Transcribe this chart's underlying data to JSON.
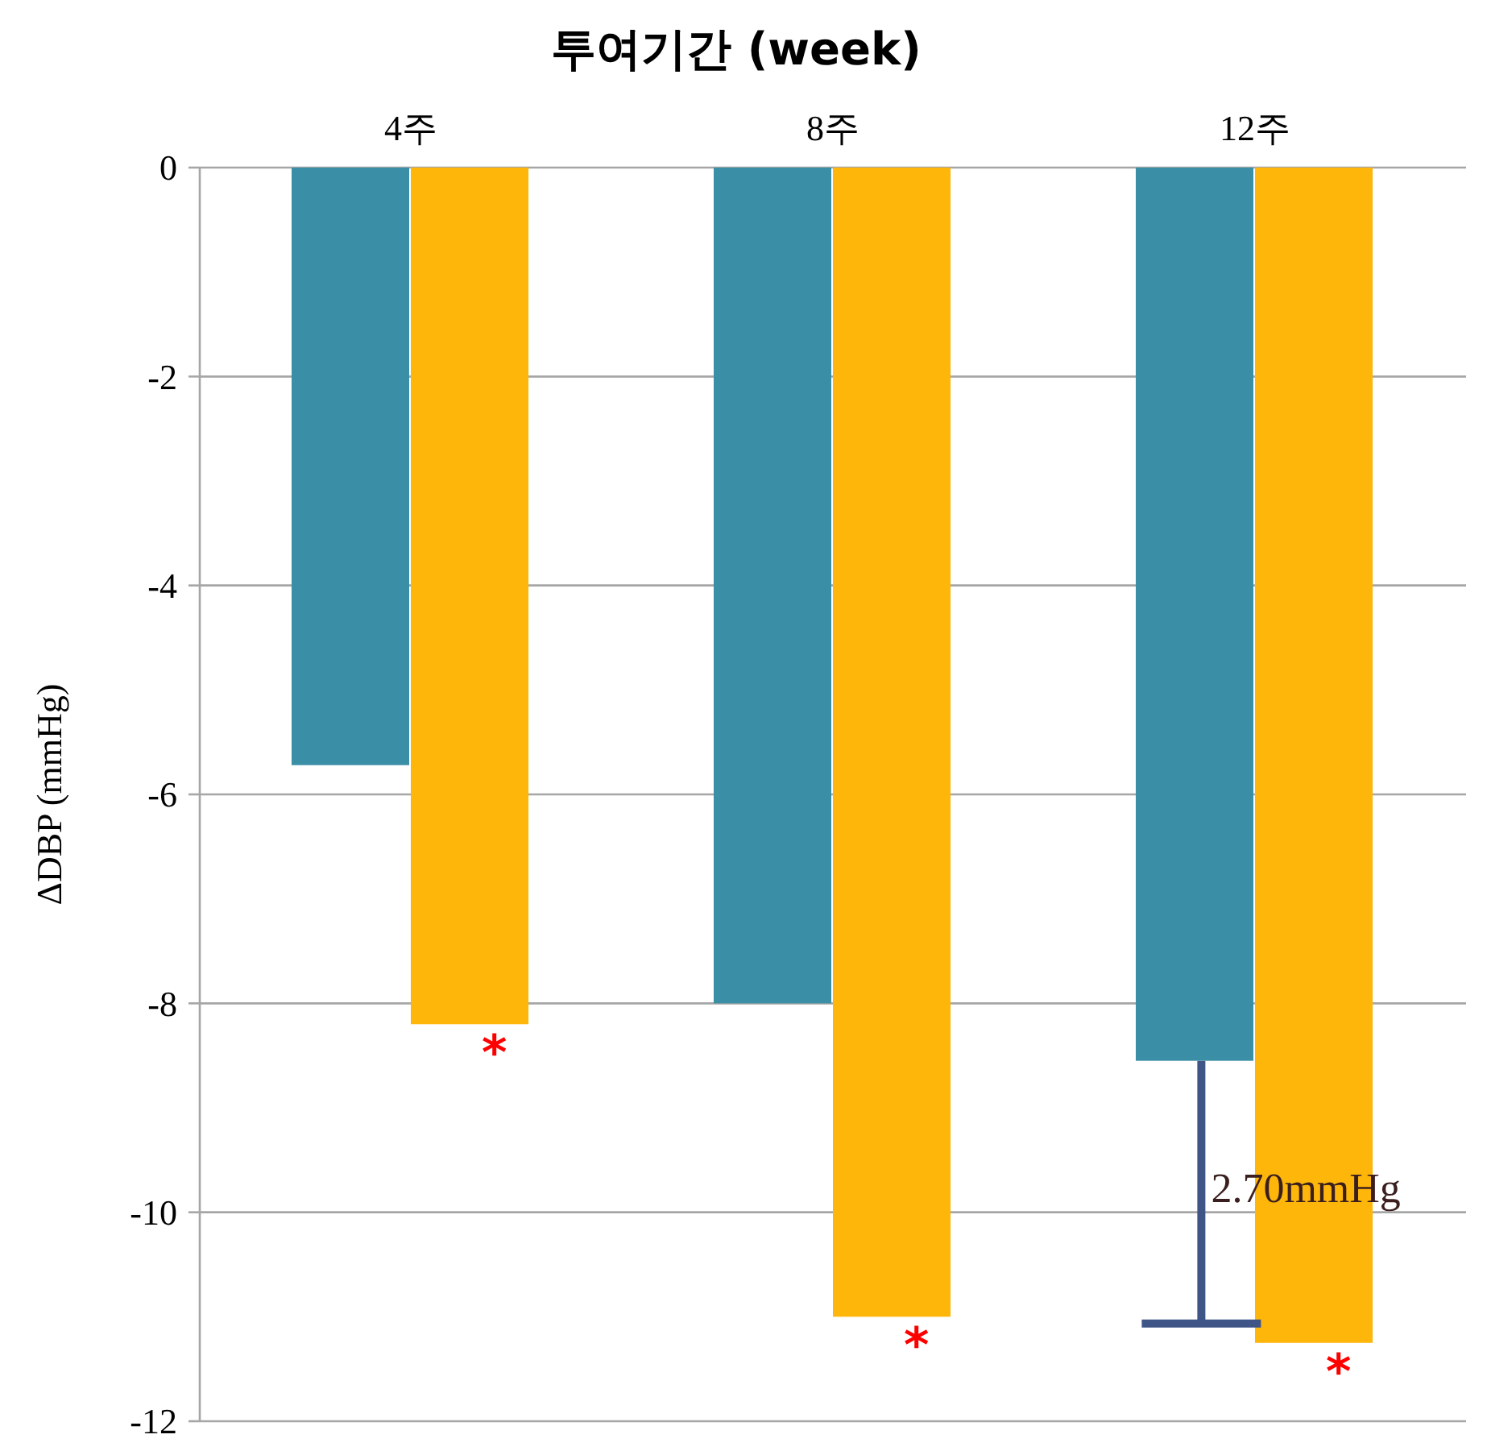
{
  "chart_data": {
    "type": "bar",
    "title": "투여기간 (week)",
    "ylabel": "ΔDBP (mmHg)",
    "categories": [
      "4주",
      "8주",
      "12주"
    ],
    "series": [
      {
        "color": "#3a8fa6",
        "values": [
          -5.72,
          -8.0,
          -8.55
        ]
      },
      {
        "color": "#ffb60a",
        "values": [
          -8.2,
          -11.0,
          -11.25
        ]
      }
    ],
    "ylim": [
      -12,
      0
    ],
    "yticks": [
      0,
      -2,
      -4,
      -6,
      -8,
      -10,
      -12
    ],
    "grid": "y",
    "annotations": [
      {
        "text": "*",
        "x": "4주",
        "y": -8.2
      },
      {
        "text": "*",
        "x": "8주",
        "y": -11.0
      },
      {
        "text": "*",
        "x": "12주",
        "y": -11.25
      },
      {
        "text": "2.70mmHg",
        "x": "12주",
        "y": -9.9
      }
    ]
  }
}
